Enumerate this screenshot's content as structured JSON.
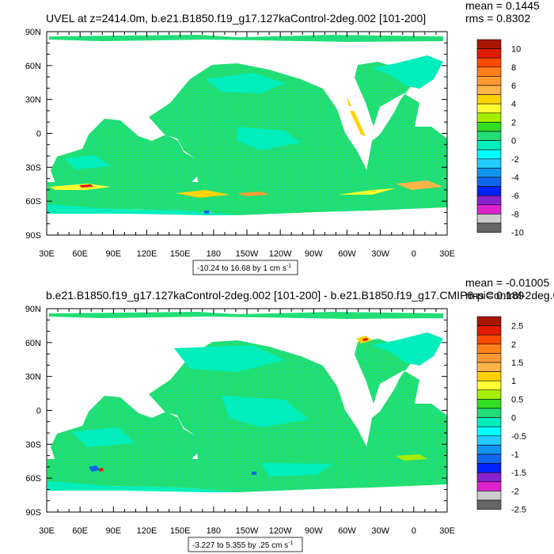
{
  "chart_data": [
    {
      "type": "heatmap",
      "title": "UVEL at z=2414.0m, b.e21.B1850.f19_g17.127kaControl-2deg.002 [101-200]",
      "stats": {
        "mean": "mean = 0.1445",
        "rms": "rms = 0.8302"
      },
      "range_label": "-10.24 to 16.68 by 1 cm s",
      "range_sup": "-1",
      "x_ticks": [
        "30E",
        "60E",
        "90E",
        "120E",
        "150E",
        "180",
        "150W",
        "120W",
        "90W",
        "60W",
        "30W",
        "0",
        "30E"
      ],
      "y_ticks": [
        "90N",
        "60N",
        "30N",
        "0",
        "30S",
        "60S",
        "90S"
      ],
      "y_values": [
        90,
        60,
        30,
        0,
        -30,
        -60,
        -90
      ],
      "xlim": [
        30,
        390
      ],
      "ylim": [
        -90,
        90
      ],
      "colorbar": {
        "labels": [
          "10",
          "8",
          "6",
          "4",
          "2",
          "0",
          "-2",
          "-4",
          "-6",
          "-8",
          "-10"
        ],
        "levels": [
          10,
          9,
          8,
          7,
          6,
          5,
          4,
          3,
          2,
          1,
          0,
          -1,
          -2,
          -3,
          -4,
          -5,
          -6,
          -7,
          -8,
          -9,
          -10
        ],
        "colors": [
          "#aa1500",
          "#e11b00",
          "#ff4a00",
          "#ff7f1a",
          "#ff9a33",
          "#ffb547",
          "#ffd200",
          "#ffff33",
          "#a6ee00",
          "#33dd22",
          "#22dd77",
          "#00eebb",
          "#00ffff",
          "#22ccff",
          "#1193ee",
          "#1166ee",
          "#0022ff",
          "#8822cc",
          "#dd22cc",
          "#cccccc",
          "#666666"
        ]
      }
    },
    {
      "type": "heatmap",
      "title": "b.e21.B1850.f19_g17.127kaControl-2deg.002 [101-200] - b.e21.B1850.f19_g17.CMIP6-piControl-2deg.0",
      "stats": {
        "mean": "mean = -0.01005",
        "rms": "rms = 0.189"
      },
      "range_label": "-3.227 to 5.355 by .25 cm s",
      "range_sup": "-1",
      "x_ticks": [
        "30E",
        "60E",
        "90E",
        "120E",
        "150E",
        "180",
        "150W",
        "120W",
        "90W",
        "60W",
        "30W",
        "0",
        "30E"
      ],
      "y_ticks": [
        "90N",
        "60N",
        "30N",
        "0",
        "30S",
        "60S",
        "90S"
      ],
      "y_values": [
        90,
        60,
        30,
        0,
        -30,
        -60,
        -90
      ],
      "xlim": [
        30,
        390
      ],
      "ylim": [
        -90,
        90
      ],
      "colorbar": {
        "labels": [
          "2.5",
          "2",
          "1.5",
          "1",
          "0.5",
          "0",
          "-0.5",
          "-1",
          "-1.5",
          "-2",
          "-2.5"
        ],
        "levels": [
          2.5,
          2.25,
          2,
          1.75,
          1.5,
          1.25,
          1,
          0.75,
          0.5,
          0.25,
          0,
          -0.25,
          -0.5,
          -0.75,
          -1,
          -1.25,
          -1.5,
          -1.75,
          -2,
          -2.25,
          -2.5
        ],
        "colors": [
          "#aa1500",
          "#e11b00",
          "#ff4a00",
          "#ff7f1a",
          "#ff9a33",
          "#ffb547",
          "#ffd200",
          "#ffff33",
          "#a6ee00",
          "#33dd22",
          "#22dd77",
          "#00eebb",
          "#00ffff",
          "#22ccff",
          "#1193ee",
          "#1166ee",
          "#0022ff",
          "#8822cc",
          "#dd22cc",
          "#cccccc",
          "#666666"
        ]
      }
    }
  ]
}
